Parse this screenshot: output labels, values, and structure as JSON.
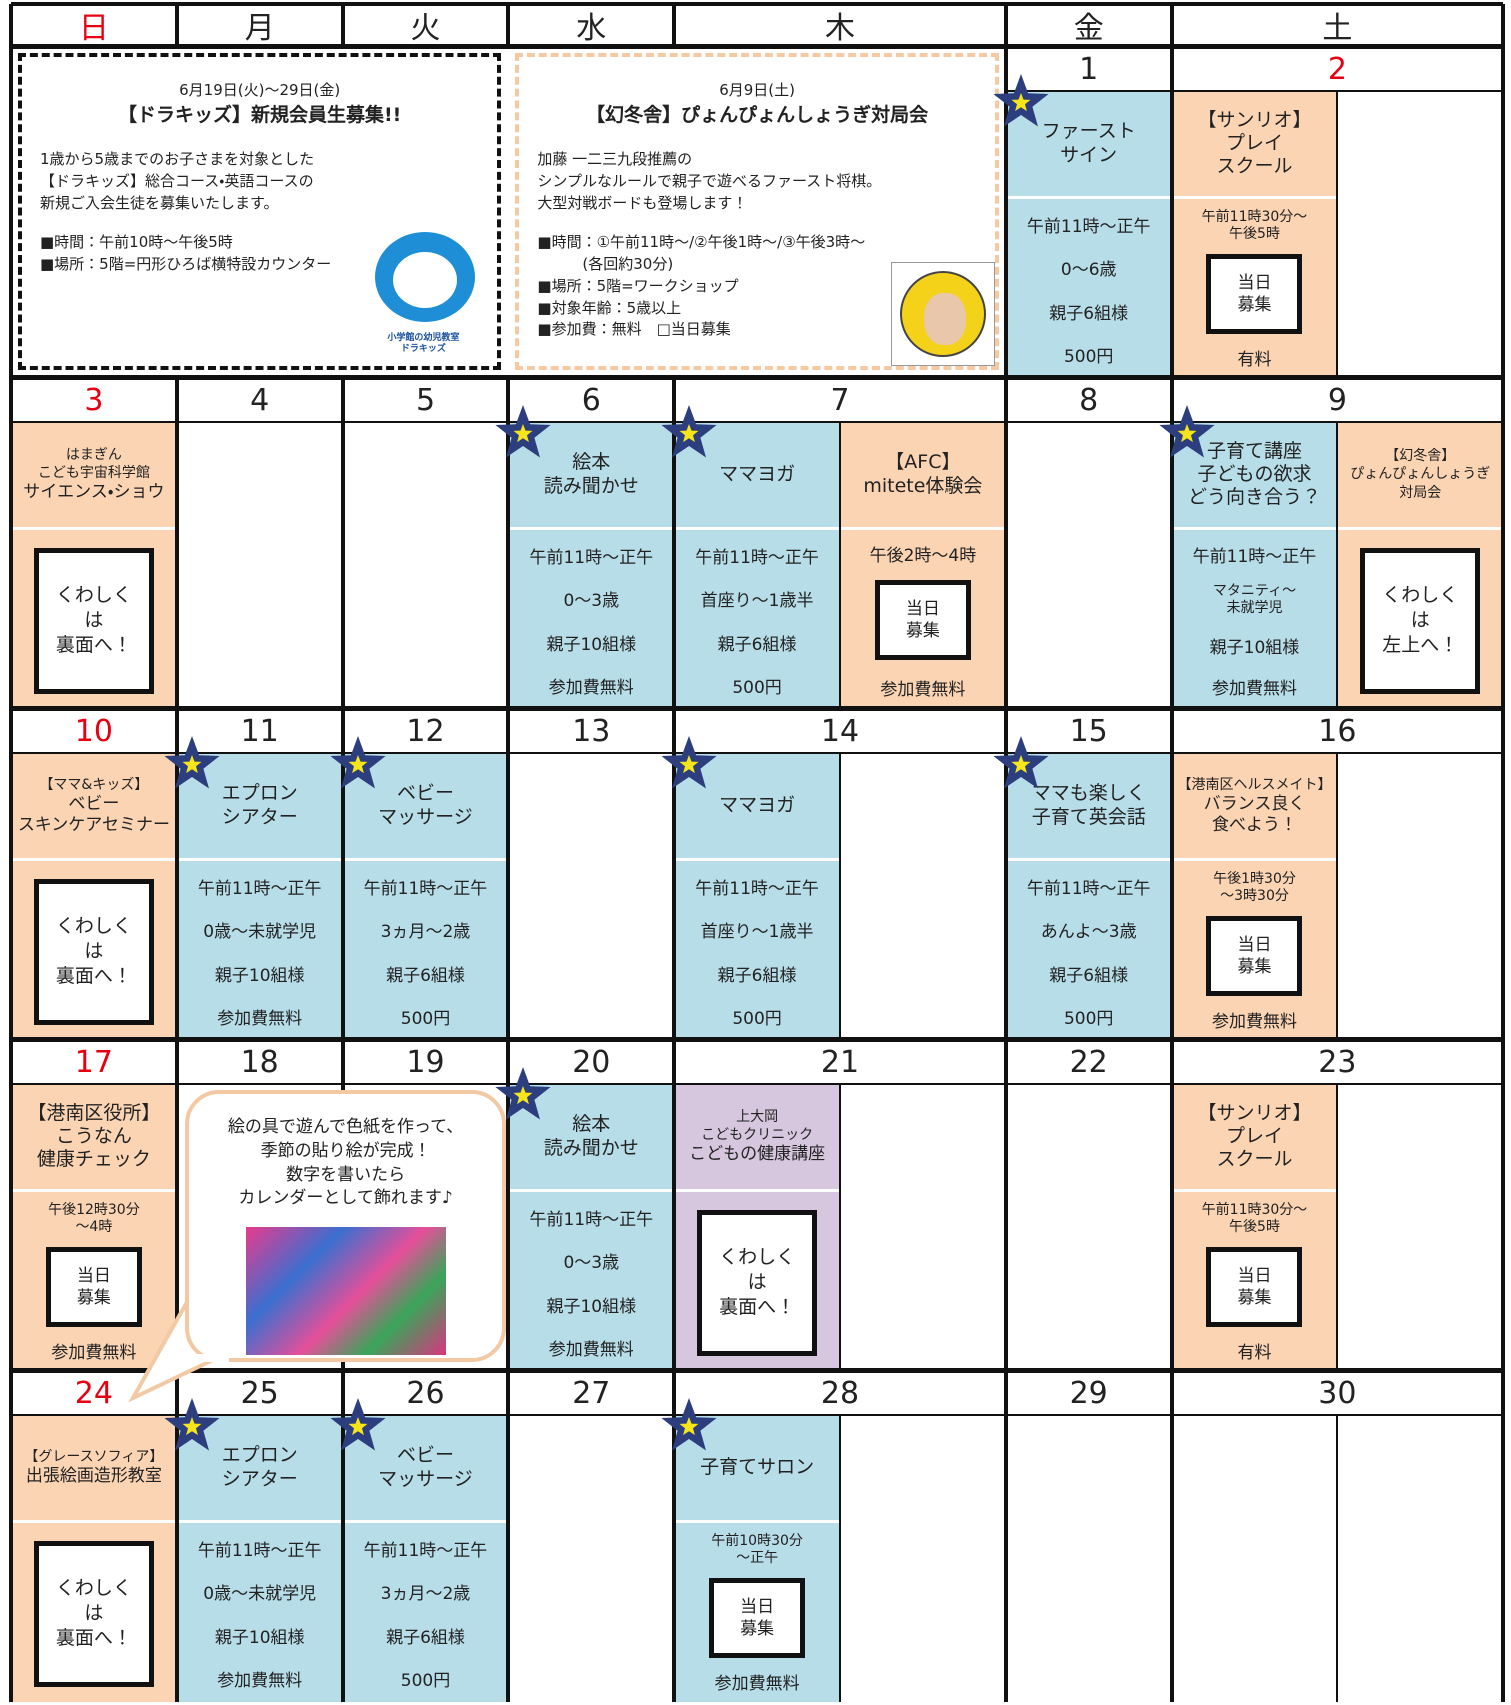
{
  "header": {
    "days": [
      {
        "label": "日",
        "color": "#e60012"
      },
      {
        "label": "月"
      },
      {
        "label": "火"
      },
      {
        "label": "水"
      },
      {
        "label": "木"
      },
      {
        "label": "金"
      },
      {
        "label": "土"
      }
    ]
  },
  "weeks": [
    {
      "days": [
        null,
        null,
        null,
        null,
        null,
        {
          "date": 1,
          "events": [
            {
              "color": "#b7dde8",
              "star": true,
              "title": "ファースト\nサイン",
              "info": [
                "午前11時～正午",
                "0～6歳",
                "親子6組様",
                "500円"
              ]
            }
          ]
        },
        {
          "date": 2,
          "color": "#e60012",
          "events": [
            {
              "color": "#fbd4b4",
              "title": "【サンリオ】\nプレイ\nスクール",
              "info": [
                "午前11時30分～\n午後5時"
              ],
              "box": "当日\n募集",
              "footer": "有料"
            }
          ]
        }
      ],
      "notices": [
        {
          "style": "dashed-black",
          "date": "6月19日(火)～29日(金)",
          "title": "【ドラキッズ】新規会員生募集!!",
          "body": "1歳から5歳までのお子さまを対象とした\n【ドラキッズ】総合コース・英語コースの\n新規ご入会生徒を募集いたします。",
          "details": "■時間：午前10時～午後5時\n■場所：5階=円形ひろば横特設カウンター",
          "logo": "小学館の幼児教室\nドラキッズ"
        },
        {
          "style": "dashed-orange",
          "date": "6月9日(土)",
          "title": "【幻冬舎】ぴょんぴょんしょうぎ対局会",
          "body": "加藤 一二三九段推薦の\nシンプルなルールで親子で遊べるファースト将棋。\n大型対戦ボードも登場します！",
          "details": "■時間：①午前11時～/②午後1時～/③午後3時～\n　　　(各回約30分)\n■場所：5階=ワークショップ\n■対象年齢：5歳以上\n■参加費：無料　□当日募集"
        }
      ]
    },
    {
      "days": [
        {
          "date": 3,
          "color": "#e60012",
          "events": [
            {
              "color": "#fbd4b4",
              "label": "はまぎん\nこども宇宙科学館",
              "title": "サイエンス・ショウ",
              "box": "くわしく\nは\n裏面へ！"
            }
          ]
        },
        {
          "date": 4,
          "events": []
        },
        {
          "date": 5,
          "events": []
        },
        {
          "date": 6,
          "events": [
            {
              "color": "#b7dde8",
              "star": true,
              "title": "絵本\n読み聞かせ",
              "info": [
                "午前11時～正午",
                "0～3歳",
                "親子10組様",
                "参加費無料"
              ]
            }
          ]
        },
        {
          "date": 7,
          "events": [
            {
              "color": "#b7dde8",
              "star": true,
              "title": "ママヨガ",
              "info": [
                "午前11時～正午",
                "首座り～1歳半",
                "親子6組様",
                "500円"
              ]
            },
            {
              "color": "#fbd4b4",
              "title": "【AFC】\nmitete体験会",
              "info": [
                "午後2時～4時"
              ],
              "box": "当日\n募集",
              "footer": "参加費無料"
            }
          ]
        },
        {
          "date": 8,
          "events": []
        },
        {
          "date": 9,
          "events": [
            {
              "color": "#b7dde8",
              "star": true,
              "title": "子育て講座\n子どもの欲求\nどう向き合う？",
              "info": [
                "午前11時～正午",
                "マタニティ～\n未就学児",
                "親子10組様",
                "参加費無料"
              ]
            },
            {
              "color": "#fbd4b4",
              "label": "【幻冬舎】\nぴょんぴょんしょうぎ\n対局会",
              "box": "くわしく\nは\n左上へ！"
            }
          ]
        }
      ]
    },
    {
      "days": [
        {
          "date": 10,
          "color": "#e60012",
          "events": [
            {
              "color": "#fbd4b4",
              "label": "【ママ&キッズ】",
              "title": "ベビー\nスキンケアセミナー",
              "box": "くわしく\nは\n裏面へ！"
            }
          ]
        },
        {
          "date": 11,
          "events": [
            {
              "color": "#b7dde8",
              "star": true,
              "title": "エプロン\nシアター",
              "info": [
                "午前11時～正午",
                "0歳～未就学児",
                "親子10組様",
                "参加費無料"
              ]
            }
          ]
        },
        {
          "date": 12,
          "events": [
            {
              "color": "#b7dde8",
              "star": true,
              "title": "ベビー\nマッサージ",
              "info": [
                "午前11時～正午",
                "3ヵ月～2歳",
                "親子6組様",
                "500円"
              ]
            }
          ]
        },
        {
          "date": 13,
          "events": []
        },
        {
          "date": 14,
          "events": [
            {
              "color": "#b7dde8",
              "star": true,
              "title": "ママヨガ",
              "info": [
                "午前11時～正午",
                "首座り～1歳半",
                "親子6組様",
                "500円"
              ]
            }
          ]
        },
        {
          "date": 15,
          "events": [
            {
              "color": "#b7dde8",
              "star": true,
              "title": "ママも楽しく\n子育て英会話",
              "info": [
                "午前11時～正午",
                "あんよ～3歳",
                "親子6組様",
                "500円"
              ]
            }
          ]
        },
        {
          "date": 16,
          "events": [
            {
              "color": "#fbd4b4",
              "label": "【港南区ヘルスメイト】",
              "title": "バランス良く\n食べよう！",
              "info": [
                "午後1時30分\n～3時30分"
              ],
              "box": "当日\n募集",
              "footer": "参加費無料"
            }
          ]
        }
      ]
    },
    {
      "days": [
        {
          "date": 17,
          "color": "#e60012",
          "events": [
            {
              "color": "#fbd4b4",
              "title": "【港南区役所】\nこうなん\n健康チェック",
              "info": [
                "午後12時30分\n～4時"
              ],
              "box": "当日\n募集",
              "footer": "参加費無料"
            }
          ]
        },
        {
          "date": 18,
          "events": []
        },
        {
          "date": 19,
          "events": []
        },
        {
          "date": 20,
          "events": [
            {
              "color": "#b7dde8",
              "star": true,
              "title": "絵本\n読み聞かせ",
              "info": [
                "午前11時～正午",
                "0～3歳",
                "親子10組様",
                "参加費無料"
              ]
            }
          ]
        },
        {
          "date": 21,
          "events": [
            {
              "color": "#d6c6de",
              "label": "上大岡\nこどもクリニック",
              "title": "こどもの健康講座",
              "box": "くわしく\nは\n裏面へ！"
            }
          ]
        },
        {
          "date": 22,
          "events": []
        },
        {
          "date": 23,
          "events": [
            {
              "color": "#fbd4b4",
              "title": "【サンリオ】\nプレイ\nスクール",
              "info": [
                "午前11時30分～\n午後5時"
              ],
              "box": "当日\n募集",
              "footer": "有料"
            }
          ]
        }
      ],
      "bubble": {
        "text": "絵の具で遊んで色紙を作って、\n季節の貼り絵が完成！\n数字を書いたら\nカレンダーとして飾れます♪"
      }
    },
    {
      "days": [
        {
          "date": 24,
          "color": "#e60012",
          "events": [
            {
              "color": "#fbd4b4",
              "label": "【グレースソフィア】",
              "title": "出張絵画造形教室",
              "box": "くわしく\nは\n裏面へ！"
            }
          ]
        },
        {
          "date": 25,
          "events": [
            {
              "color": "#b7dde8",
              "star": true,
              "title": "エプロン\nシアター",
              "info": [
                "午前11時～正午",
                "0歳～未就学児",
                "親子10組様",
                "参加費無料"
              ]
            }
          ]
        },
        {
          "date": 26,
          "events": [
            {
              "color": "#b7dde8",
              "star": true,
              "title": "ベビー\nマッサージ",
              "info": [
                "午前11時～正午",
                "3ヵ月～2歳",
                "親子6組様",
                "500円"
              ]
            }
          ]
        },
        {
          "date": 27,
          "events": []
        },
        {
          "date": 28,
          "events": [
            {
              "color": "#b7dde8",
              "star": true,
              "title": "子育てサロン",
              "info": [
                "午前10時30分\n～正午"
              ],
              "box": "当日\n募集",
              "footer": "参加費無料"
            }
          ]
        },
        {
          "date": 29,
          "events": []
        },
        {
          "date": 30,
          "events": []
        }
      ]
    }
  ]
}
